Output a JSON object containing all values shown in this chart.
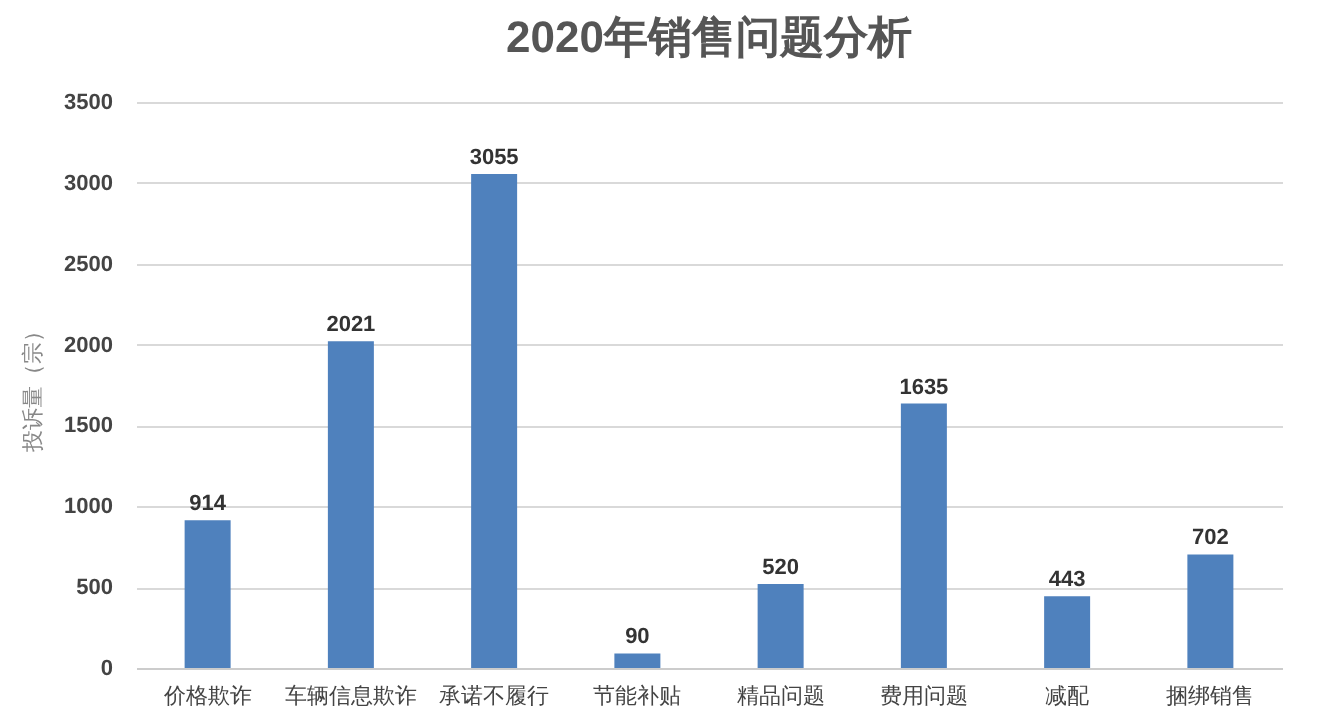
{
  "chart_data": {
    "type": "bar",
    "title": "2020年销售问题分析",
    "ylabel": "投诉量（宗）",
    "categories": [
      "价格欺诈",
      "车辆信息欺诈",
      "承诺不履行",
      "节能补贴",
      "精品问题",
      "费用问题",
      "减配",
      "捆绑销售"
    ],
    "values": [
      914,
      2021,
      3055,
      90,
      520,
      1635,
      443,
      702
    ],
    "color": "#4f81bd",
    "ylim": [
      0,
      3500
    ],
    "yticks": [
      0,
      500,
      1000,
      1500,
      2000,
      2500,
      3000,
      3500
    ],
    "grid": "y",
    "data_labels": true
  }
}
